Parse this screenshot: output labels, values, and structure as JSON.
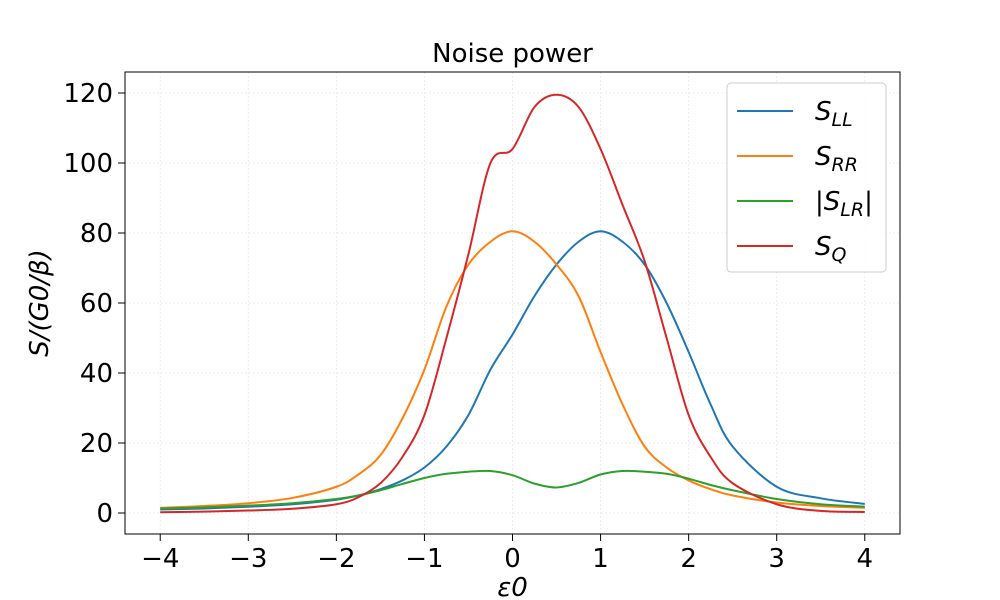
{
  "chart_data": {
    "type": "line",
    "title": "Noise power",
    "xlabel": "ε0",
    "ylabel": "S/(G0/β)",
    "xlim": [
      -4.4,
      4.4
    ],
    "ylim": [
      -6,
      126
    ],
    "xticks": [
      -4,
      -3,
      -2,
      -1,
      0,
      1,
      2,
      3,
      4
    ],
    "xtick_labels": [
      "−4",
      "−3",
      "−2",
      "−1",
      "0",
      "1",
      "2",
      "3",
      "4"
    ],
    "yticks": [
      0,
      20,
      40,
      60,
      80,
      100,
      120
    ],
    "ytick_labels": [
      "0",
      "20",
      "40",
      "60",
      "80",
      "100",
      "120"
    ],
    "grid": true,
    "legend_position": "top-right",
    "x": [
      -4,
      -3.5,
      -3,
      -2.5,
      -2,
      -1.75,
      -1.5,
      -1.25,
      -1,
      -0.75,
      -0.5,
      -0.25,
      0,
      0.25,
      0.5,
      0.75,
      1,
      1.25,
      1.5,
      1.75,
      2,
      2.25,
      2.5,
      3,
      3.5,
      4
    ],
    "series": [
      {
        "name": "S_LL",
        "label_main": "S",
        "label_sub": "LL",
        "color": "#1f77b4",
        "values": [
          1.0,
          1.3,
          1.8,
          2.5,
          3.8,
          5.0,
          6.8,
          9.3,
          13,
          19,
          28,
          41,
          51,
          62,
          71,
          77.5,
          80.5,
          77.5,
          71,
          60,
          46,
          31,
          19,
          7.5,
          4.2,
          2.6
        ]
      },
      {
        "name": "S_RR",
        "label_main": "S",
        "label_sub": "RR",
        "color": "#ff7f0e",
        "values": [
          1.5,
          2.0,
          2.8,
          4.3,
          7.5,
          11,
          16.5,
          27,
          41,
          59,
          71,
          77.5,
          80.5,
          77.5,
          71,
          62,
          46,
          31,
          19,
          13,
          9.3,
          6.8,
          5.0,
          3.0,
          2.0,
          1.5
        ]
      },
      {
        "name": "|S_LR|",
        "label_main": "|S",
        "label_sub": "LR",
        "label_tail": "|",
        "color": "#2ca02c",
        "values": [
          1.3,
          1.6,
          2.1,
          2.8,
          4.0,
          5.0,
          6.5,
          8.3,
          10,
          11.2,
          11.8,
          12.0,
          10.8,
          8.4,
          7.3,
          8.6,
          11.0,
          12.0,
          11.8,
          11.2,
          9.8,
          8.0,
          6.5,
          4.0,
          2.5,
          1.8
        ]
      },
      {
        "name": "S_Q",
        "label_main": "S",
        "label_sub": "Q",
        "color": "#d62728",
        "values": [
          0.2,
          0.4,
          0.7,
          1.2,
          2.5,
          4.5,
          8.5,
          16,
          28,
          50,
          74,
          100,
          104,
          116,
          119.5,
          116,
          104,
          88,
          72,
          50,
          28,
          16,
          8.5,
          2.5,
          0.6,
          0.3
        ]
      }
    ]
  }
}
